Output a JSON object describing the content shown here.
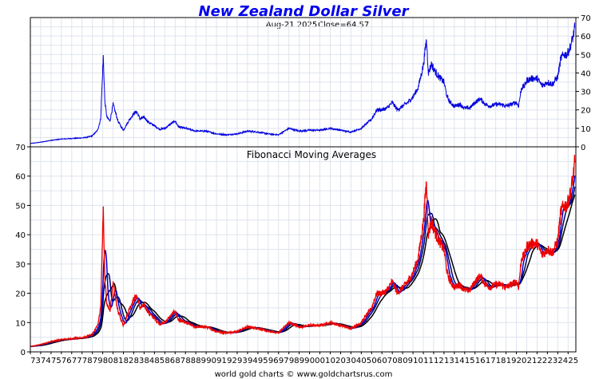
{
  "title": "New Zealand Dollar Silver",
  "subtitle_date": "Aug-21  2025",
  "subtitle_close": "Close=64.57",
  "footer": "world gold charts © www.goldchartsrus.com",
  "colors": {
    "title": "#0000ee",
    "price": "#0000dd",
    "fib_red": "#ee0000",
    "fib_blue": "#0000cc",
    "fib_navy": "#000066",
    "fib_black": "#000000",
    "grid": "#dde3ee",
    "frame": "#000000"
  },
  "chart_data": [
    {
      "name": "price",
      "type": "line",
      "xlim": [
        1973,
        2025.75
      ],
      "ylim": [
        0,
        70
      ],
      "y_ticks": [
        0,
        10,
        20,
        30,
        40,
        50,
        60,
        70
      ],
      "y_axis_side": "right",
      "grid": true,
      "x": [
        1973.0,
        1974.0,
        1975.0,
        1976.0,
        1977.0,
        1978.0,
        1978.5,
        1979.0,
        1979.5,
        1979.8,
        1980.05,
        1980.2,
        1980.4,
        1980.7,
        1981.0,
        1981.5,
        1982.0,
        1982.5,
        1983.0,
        1983.3,
        1983.6,
        1984.0,
        1984.5,
        1985.0,
        1985.5,
        1986.0,
        1986.5,
        1987.0,
        1987.3,
        1987.6,
        1988.0,
        1989.0,
        1990.0,
        1991.0,
        1992.0,
        1993.0,
        1994.0,
        1995.0,
        1996.0,
        1997.0,
        1998.0,
        1999.0,
        2000.0,
        2001.0,
        2002.0,
        2003.0,
        2004.0,
        2005.0,
        2006.0,
        2006.5,
        2007.0,
        2007.5,
        2008.0,
        2008.5,
        2009.0,
        2009.5,
        2010.0,
        2010.5,
        2011.0,
        2011.3,
        2011.5,
        2011.8,
        2012.0,
        2012.5,
        2013.0,
        2013.3,
        2013.6,
        2014.0,
        2014.5,
        2015.0,
        2015.5,
        2016.0,
        2016.5,
        2017.0,
        2017.5,
        2018.0,
        2018.5,
        2019.0,
        2019.5,
        2020.0,
        2020.2,
        2020.5,
        2020.8,
        2021.0,
        2021.5,
        2022.0,
        2022.5,
        2023.0,
        2023.5,
        2024.0,
        2024.3,
        2024.6,
        2024.9,
        2025.2,
        2025.5,
        2025.64
      ],
      "values": [
        1.8,
        2.5,
        3.5,
        4.2,
        4.5,
        4.8,
        5.2,
        6.0,
        9.0,
        15.0,
        49.0,
        25.0,
        16.0,
        14.0,
        23.0,
        13.5,
        9.0,
        14.0,
        18.0,
        19.0,
        15.0,
        16.0,
        13.0,
        11.5,
        9.5,
        10.0,
        12.0,
        14.0,
        11.0,
        10.5,
        10.0,
        8.5,
        8.5,
        7.0,
        6.5,
        7.0,
        8.5,
        8.0,
        7.0,
        6.5,
        10.0,
        8.5,
        9.0,
        9.0,
        10.0,
        9.0,
        8.0,
        10.0,
        15.0,
        20.0,
        20.0,
        21.0,
        24.0,
        20.0,
        22.0,
        24.0,
        27.0,
        32.0,
        44.0,
        58.0,
        40.0,
        45.0,
        42.0,
        38.0,
        35.0,
        27.0,
        24.0,
        22.0,
        23.0,
        21.0,
        21.0,
        24.0,
        26.0,
        23.0,
        22.0,
        23.0,
        23.0,
        22.0,
        23.0,
        24.0,
        22.0,
        32.0,
        33.0,
        36.0,
        37.0,
        37.0,
        33.0,
        35.0,
        34.0,
        38.0,
        48.0,
        50.0,
        50.0,
        54.0,
        60.0,
        64.57
      ]
    },
    {
      "name": "fibonacci",
      "type": "line",
      "title": "Fibonacci Moving Averages",
      "xlim": [
        1973,
        2025.75
      ],
      "ylim": [
        0,
        70
      ],
      "y_ticks": [
        0,
        10,
        20,
        30,
        40,
        50,
        60,
        70
      ],
      "y_axis_side": "left",
      "grid": true,
      "x_tick_labels": [
        "73",
        "74",
        "75",
        "76",
        "77",
        "78",
        "79",
        "80",
        "81",
        "82",
        "83",
        "84",
        "85",
        "86",
        "87",
        "88",
        "89",
        "90",
        "91",
        "92",
        "93",
        "94",
        "95",
        "96",
        "97",
        "98",
        "99",
        "00",
        "01",
        "02",
        "03",
        "04",
        "05",
        "06",
        "07",
        "08",
        "09",
        "10",
        "11",
        "12",
        "13",
        "14",
        "15",
        "16",
        "17",
        "18",
        "19",
        "20",
        "21",
        "22",
        "23",
        "24",
        "25"
      ],
      "smoothing_windows": [
        0,
        0.4,
        0.75,
        1.25
      ],
      "series_colors": [
        "#ee0000",
        "#0000cc",
        "#000066",
        "#000000"
      ]
    }
  ]
}
